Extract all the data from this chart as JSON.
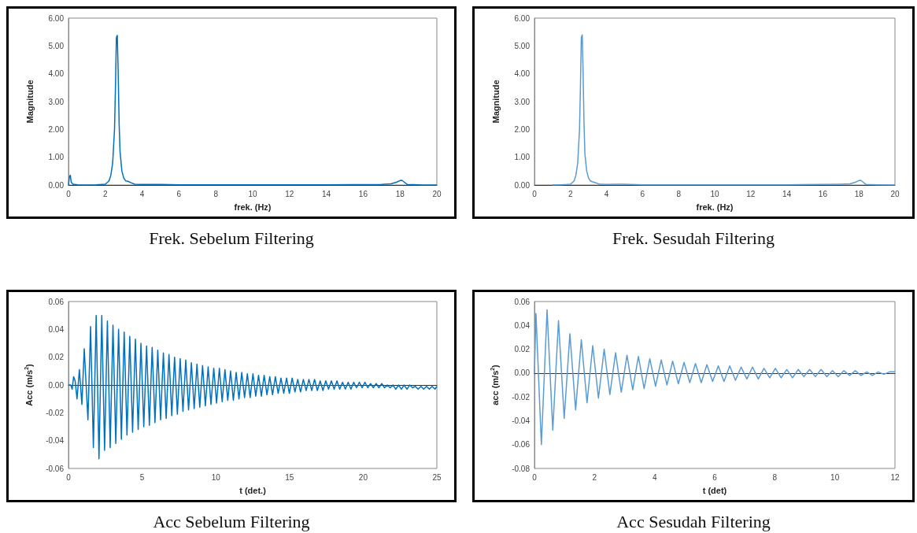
{
  "chart_data": [
    {
      "type": "line",
      "title": "Frek. Sebelum Filtering",
      "xlabel": "frek. (Hz)",
      "ylabel": "Magnitude",
      "color": "#0070c0",
      "marker": "none",
      "x": [
        0,
        0.05,
        0.1,
        0.15,
        0.25,
        0.5,
        1,
        1.5,
        2,
        2.2,
        2.3,
        2.4,
        2.5,
        2.55,
        2.6,
        2.65,
        2.7,
        2.75,
        2.8,
        2.9,
        3,
        3.1,
        3.2,
        3.4,
        3.6,
        4,
        5,
        6,
        8,
        10,
        14,
        17,
        17.5,
        17.8,
        18,
        18.1,
        18.2,
        18.4,
        19,
        19.2,
        20
      ],
      "values": [
        0,
        0.3,
        0.35,
        0.1,
        0.03,
        0.01,
        0,
        0.01,
        0.03,
        0.15,
        0.35,
        0.8,
        2,
        3.5,
        5.3,
        5.38,
        4,
        2.2,
        1.2,
        0.5,
        0.25,
        0.15,
        0.14,
        0.08,
        0.03,
        0.02,
        0.02,
        0.01,
        0.01,
        0.01,
        0.01,
        0.02,
        0.04,
        0.1,
        0.16,
        0.17,
        0.12,
        0.02,
        0.01,
        0,
        0
      ],
      "xlim": [
        0,
        20
      ],
      "xticks": [
        0,
        2,
        4,
        6,
        8,
        10,
        12,
        14,
        16,
        18,
        20
      ],
      "ylim": [
        0,
        6
      ],
      "yticks": [
        {
          "value": 0,
          "label": "0.00"
        },
        {
          "value": 1,
          "label": "1.00"
        },
        {
          "value": 2,
          "label": "2.00"
        },
        {
          "value": 3,
          "label": "3.00"
        },
        {
          "value": 4,
          "label": "4.00"
        },
        {
          "value": 5,
          "label": "5.00"
        },
        {
          "value": 6,
          "label": "6.00"
        }
      ]
    },
    {
      "type": "line",
      "title": "Frek. Sesudah Filtering",
      "xlabel": "frek. (Hz)",
      "ylabel": "Magnitude",
      "color": "#5b9bd5",
      "marker": "none",
      "x": [
        1,
        1.5,
        1.8,
        2,
        2.2,
        2.3,
        2.4,
        2.5,
        2.55,
        2.6,
        2.65,
        2.7,
        2.75,
        2.8,
        2.9,
        3,
        3.1,
        3.2,
        3.4,
        3.6,
        4,
        4.5,
        5,
        6,
        8,
        10,
        14,
        17,
        17.5,
        17.8,
        18,
        18.1,
        18.2,
        18.4,
        19,
        20
      ],
      "values": [
        0,
        0.01,
        0.02,
        0.03,
        0.15,
        0.35,
        0.8,
        2,
        3.5,
        5.3,
        5.4,
        4,
        2.2,
        1.1,
        0.5,
        0.25,
        0.15,
        0.12,
        0.08,
        0.03,
        0.02,
        0.03,
        0.03,
        0.01,
        0.01,
        0.01,
        0.01,
        0.03,
        0.04,
        0.1,
        0.16,
        0.17,
        0.12,
        0.02,
        0.01,
        0
      ],
      "xlim": [
        0,
        20
      ],
      "xticks": [
        0,
        2,
        4,
        6,
        8,
        10,
        12,
        14,
        16,
        18,
        20
      ],
      "ylim": [
        0,
        6
      ],
      "yticks": [
        {
          "value": 0,
          "label": "0.00"
        },
        {
          "value": 1,
          "label": "1.00"
        },
        {
          "value": 2,
          "label": "2.00"
        },
        {
          "value": 3,
          "label": "3.00"
        },
        {
          "value": 4,
          "label": "4.00"
        },
        {
          "value": 5,
          "label": "5.00"
        },
        {
          "value": 6,
          "label": "6.00"
        }
      ]
    },
    {
      "type": "line",
      "title": "Acc Sebelum Filtering",
      "xlabel": "t (det.)",
      "ylabel": "Acc (m/s$^{2}$)",
      "color": "#0070c0",
      "marker": "none",
      "x": [
        0,
        0.15,
        0.25,
        0.35,
        0.45,
        0.58,
        0.74,
        0.91,
        1.07,
        1.32,
        1.5,
        1.69,
        1.88,
        2.07,
        2.26,
        2.45,
        2.64,
        2.83,
        3.02,
        3.21,
        3.4,
        3.59,
        3.78,
        3.97,
        4.16,
        4.35,
        4.54,
        4.73,
        4.92,
        5.11,
        5.3,
        5.49,
        5.68,
        5.87,
        6.06,
        6.25,
        6.44,
        6.63,
        6.82,
        7.01,
        7.2,
        7.39,
        7.58,
        7.77,
        7.96,
        8.15,
        8.34,
        8.53,
        8.72,
        8.91,
        9.1,
        9.29,
        9.48,
        9.67,
        9.86,
        10.05,
        10.24,
        10.43,
        10.62,
        10.81,
        11,
        11.19,
        11.38,
        11.57,
        11.76,
        11.95,
        12.14,
        12.33,
        12.52,
        12.71,
        12.9,
        13.09,
        13.28,
        13.47,
        13.66,
        13.85,
        14.04,
        14.23,
        14.42,
        14.61,
        14.8,
        14.99,
        15.18,
        15.37,
        15.56,
        15.75,
        15.94,
        16.13,
        16.32,
        16.51,
        16.7,
        16.89,
        17.08,
        17.27,
        17.46,
        17.65,
        17.84,
        18.03,
        18.22,
        18.41,
        18.6,
        18.79,
        18.98,
        19.17,
        19.36,
        19.55,
        19.74,
        19.93,
        20.12,
        20.31,
        20.5,
        20.69,
        20.88,
        21.07,
        21.26,
        21.45,
        21.64,
        21.83,
        22.02,
        22.21,
        22.4,
        22.59,
        22.78,
        22.97,
        23.16,
        23.35,
        23.54,
        23.73,
        23.92,
        24.11,
        24.3,
        24.49,
        24.68,
        24.87,
        25
      ],
      "values": [
        0,
        0,
        -0.003,
        0.006,
        0.003,
        -0.01,
        0.011,
        -0.014,
        0.026,
        -0.025,
        0.042,
        -0.045,
        0.05,
        -0.053,
        0.05,
        -0.047,
        0.046,
        -0.045,
        0.043,
        -0.042,
        0.04,
        -0.039,
        0.038,
        -0.036,
        0.035,
        -0.034,
        0.033,
        -0.032,
        0.03,
        -0.03,
        0.028,
        -0.029,
        0.027,
        -0.027,
        0.025,
        -0.025,
        0.023,
        -0.024,
        0.022,
        -0.022,
        0.02,
        -0.021,
        0.019,
        -0.019,
        0.018,
        -0.018,
        0.016,
        -0.017,
        0.015,
        -0.016,
        0.014,
        -0.015,
        0.013,
        -0.014,
        0.012,
        -0.013,
        0.012,
        -0.012,
        0.011,
        -0.011,
        0.01,
        -0.011,
        0.009,
        -0.01,
        0.009,
        -0.009,
        0.008,
        -0.009,
        0.008,
        -0.008,
        0.007,
        -0.008,
        0.007,
        -0.007,
        0.006,
        -0.007,
        0.006,
        -0.006,
        0.005,
        -0.006,
        0.005,
        -0.006,
        0.005,
        -0.005,
        0.004,
        -0.005,
        0.004,
        -0.004,
        0.004,
        -0.004,
        0.004,
        -0.004,
        0.003,
        -0.004,
        0.003,
        -0.003,
        0.003,
        -0.003,
        0.003,
        -0.003,
        0.002,
        -0.003,
        0.002,
        -0.003,
        0.002,
        -0.002,
        0.002,
        -0.002,
        0.002,
        -0.002,
        0.001,
        -0.002,
        0.001,
        -0.002,
        0.001,
        -0.002,
        0,
        -0.002,
        0,
        -0.003,
        0,
        -0.003,
        0,
        -0.003,
        0,
        -0.002,
        -0.001,
        -0.003,
        -0.001,
        -0.003,
        -0.001,
        -0.003,
        -0.001,
        -0.003,
        -0.001
      ],
      "xlim": [
        0,
        25
      ],
      "xticks": [
        0,
        5,
        10,
        15,
        20,
        25
      ],
      "ylim": [
        -0.06,
        0.06
      ],
      "yticks": [
        -0.06,
        -0.04,
        -0.02,
        {
          "value": 0,
          "label": "0.00"
        },
        0.02,
        0.04,
        0.06
      ]
    },
    {
      "type": "line",
      "title": "Acc Sesudah Filtering",
      "xlabel": "t (det)",
      "ylabel": "acc (m/s$^{2}$)",
      "color": "#5b9bd5",
      "marker": "none",
      "x": [
        0,
        0.05,
        0.23,
        0.42,
        0.61,
        0.8,
        0.99,
        1.18,
        1.37,
        1.56,
        1.75,
        1.94,
        2.13,
        2.32,
        2.51,
        2.7,
        2.89,
        3.08,
        3.27,
        3.46,
        3.65,
        3.84,
        4.03,
        4.22,
        4.41,
        4.6,
        4.79,
        4.98,
        5.17,
        5.36,
        5.55,
        5.74,
        5.93,
        6.12,
        6.31,
        6.5,
        6.69,
        6.88,
        7.07,
        7.26,
        7.45,
        7.64,
        7.83,
        8.02,
        8.21,
        8.4,
        8.59,
        8.78,
        8.97,
        9.16,
        9.35,
        9.54,
        9.73,
        9.92,
        10.11,
        10.3,
        10.49,
        10.68,
        10.87,
        11.06,
        11.25,
        11.44,
        11.63,
        11.82,
        12
      ],
      "values": [
        0,
        0.05,
        -0.06,
        0.053,
        -0.048,
        0.044,
        -0.038,
        0.033,
        -0.031,
        0.028,
        -0.025,
        0.023,
        -0.021,
        0.02,
        -0.018,
        0.017,
        -0.016,
        0.015,
        -0.014,
        0.014,
        -0.013,
        0.012,
        -0.011,
        0.011,
        -0.01,
        0.01,
        -0.009,
        0.009,
        -0.008,
        0.008,
        -0.008,
        0.007,
        -0.007,
        0.006,
        -0.007,
        0.006,
        -0.006,
        0.005,
        -0.005,
        0.005,
        -0.005,
        0.004,
        -0.004,
        0.004,
        -0.004,
        0.003,
        -0.004,
        0.003,
        -0.003,
        0.003,
        -0.003,
        0.003,
        -0.003,
        0.002,
        -0.003,
        0.002,
        -0.002,
        0.002,
        -0.002,
        0.001,
        -0.002,
        0.001,
        -0.001,
        0.001,
        0.001
      ],
      "xlim": [
        0,
        12
      ],
      "xticks": [
        0,
        2,
        4,
        6,
        8,
        10,
        12
      ],
      "ylim": [
        -0.08,
        0.06
      ],
      "yticks": [
        -0.08,
        -0.06,
        -0.04,
        -0.02,
        {
          "value": 0,
          "label": "0.00"
        },
        0.02,
        0.04,
        0.06
      ]
    }
  ]
}
